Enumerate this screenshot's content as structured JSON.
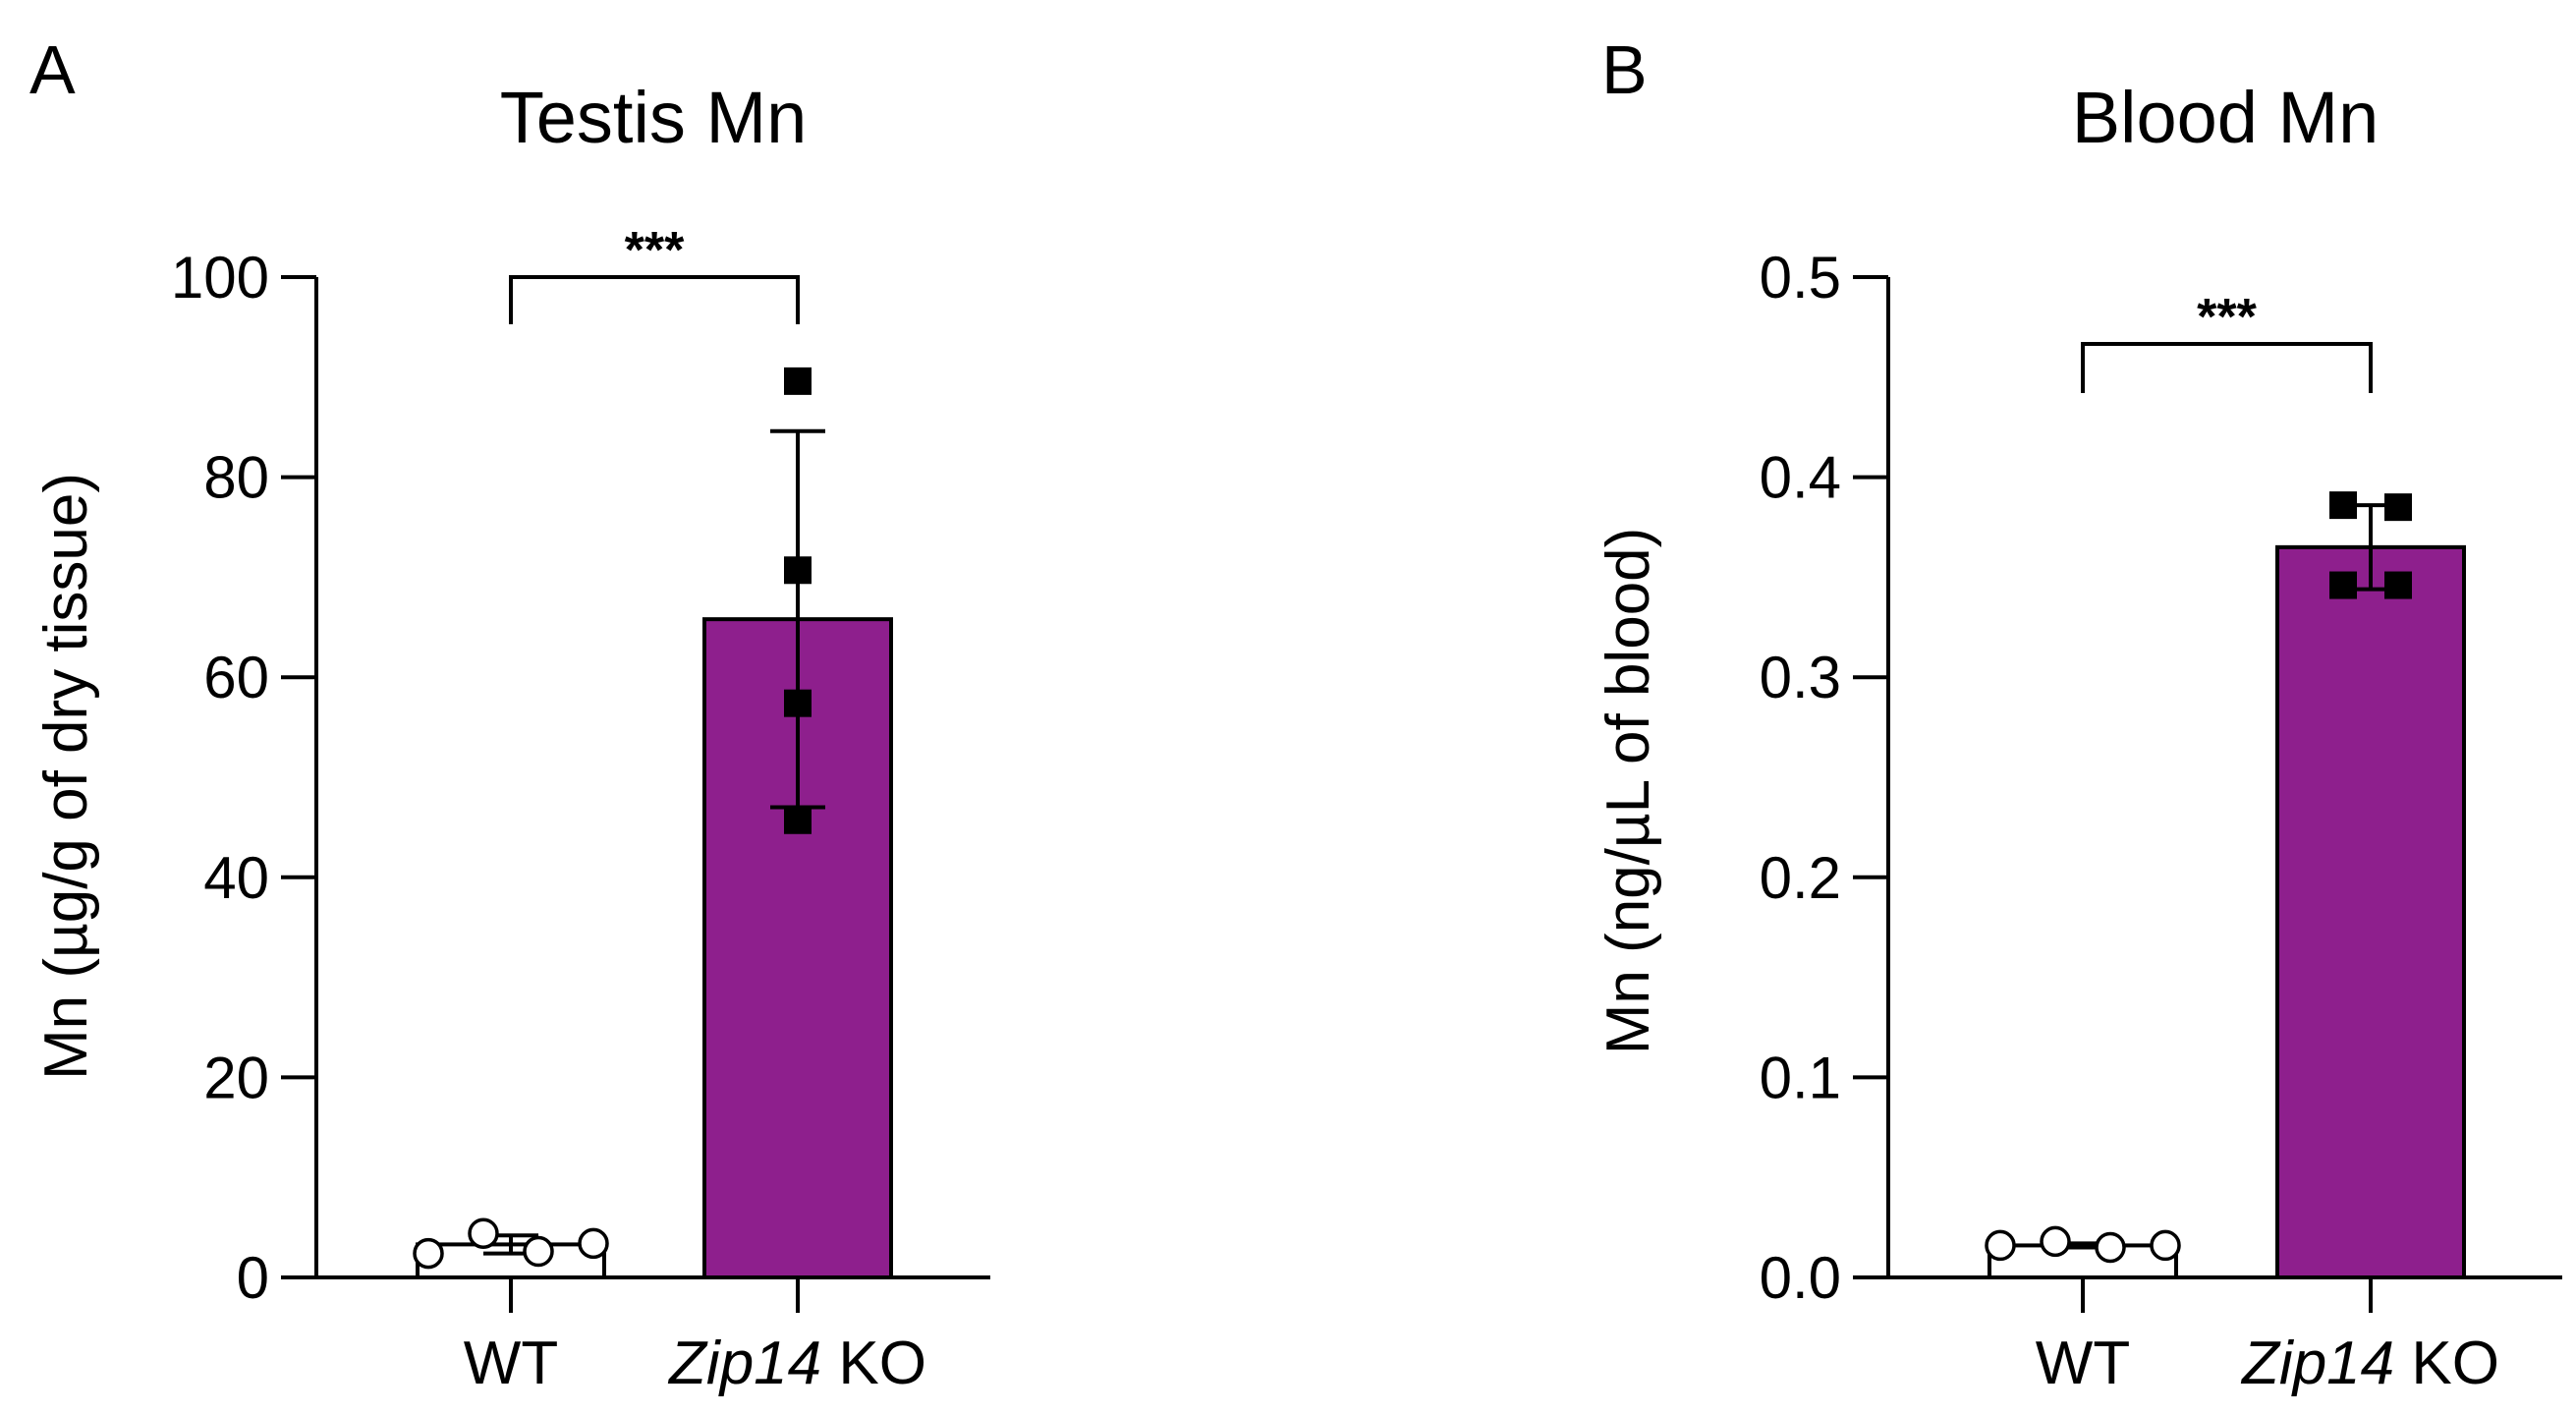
{
  "chart_data": [
    {
      "type": "bar",
      "panel_label": "A",
      "title": "Testis Mn",
      "ylabel": "Mn (µg/g of dry tissue)",
      "ylim": [
        0,
        100
      ],
      "yticks": [
        "0",
        "20",
        "40",
        "60",
        "80",
        "100"
      ],
      "ytick_values": [
        0,
        20,
        40,
        60,
        80,
        100
      ],
      "categories": [
        {
          "label": "WT",
          "italic_prefix": "",
          "text": "WT"
        },
        {
          "label": "Zip14 KO",
          "italic_prefix": "Zip14",
          "text": " KO"
        }
      ],
      "values": [
        3.3,
        65.8
      ],
      "sd": [
        0.9,
        18.8
      ],
      "points": [
        [
          2.4,
          4.4,
          2.6,
          3.4
        ],
        [
          89.6,
          70.7,
          57.4,
          45.7
        ]
      ],
      "markers": [
        "open-circle",
        "filled-square"
      ],
      "bar_colors": [
        "#ffffff",
        "#8e1f8d"
      ],
      "significance": "***"
    },
    {
      "type": "bar",
      "panel_label": "B",
      "title": "Blood Mn",
      "ylabel": "Mn (ng/µL of blood)",
      "ylim": [
        0,
        0.5
      ],
      "yticks": [
        "0.0",
        "0.1",
        "0.2",
        "0.3",
        "0.4",
        "0.5"
      ],
      "ytick_values": [
        0,
        0.1,
        0.2,
        0.3,
        0.4,
        0.5
      ],
      "categories": [
        {
          "label": "WT",
          "italic_prefix": "",
          "text": "WT"
        },
        {
          "label": "Zip14 KO",
          "italic_prefix": "Zip14",
          "text": " KO"
        }
      ],
      "values": [
        0.016,
        0.365
      ],
      "sd": [
        0.001,
        0.021
      ],
      "points": [
        [
          0.016,
          0.018,
          0.015,
          0.016
        ],
        [
          0.386,
          0.385,
          0.346,
          0.346
        ]
      ],
      "markers": [
        "open-circle",
        "filled-square"
      ],
      "bar_colors": [
        "#ffffff",
        "#8e1f8d"
      ],
      "significance": "***"
    }
  ]
}
